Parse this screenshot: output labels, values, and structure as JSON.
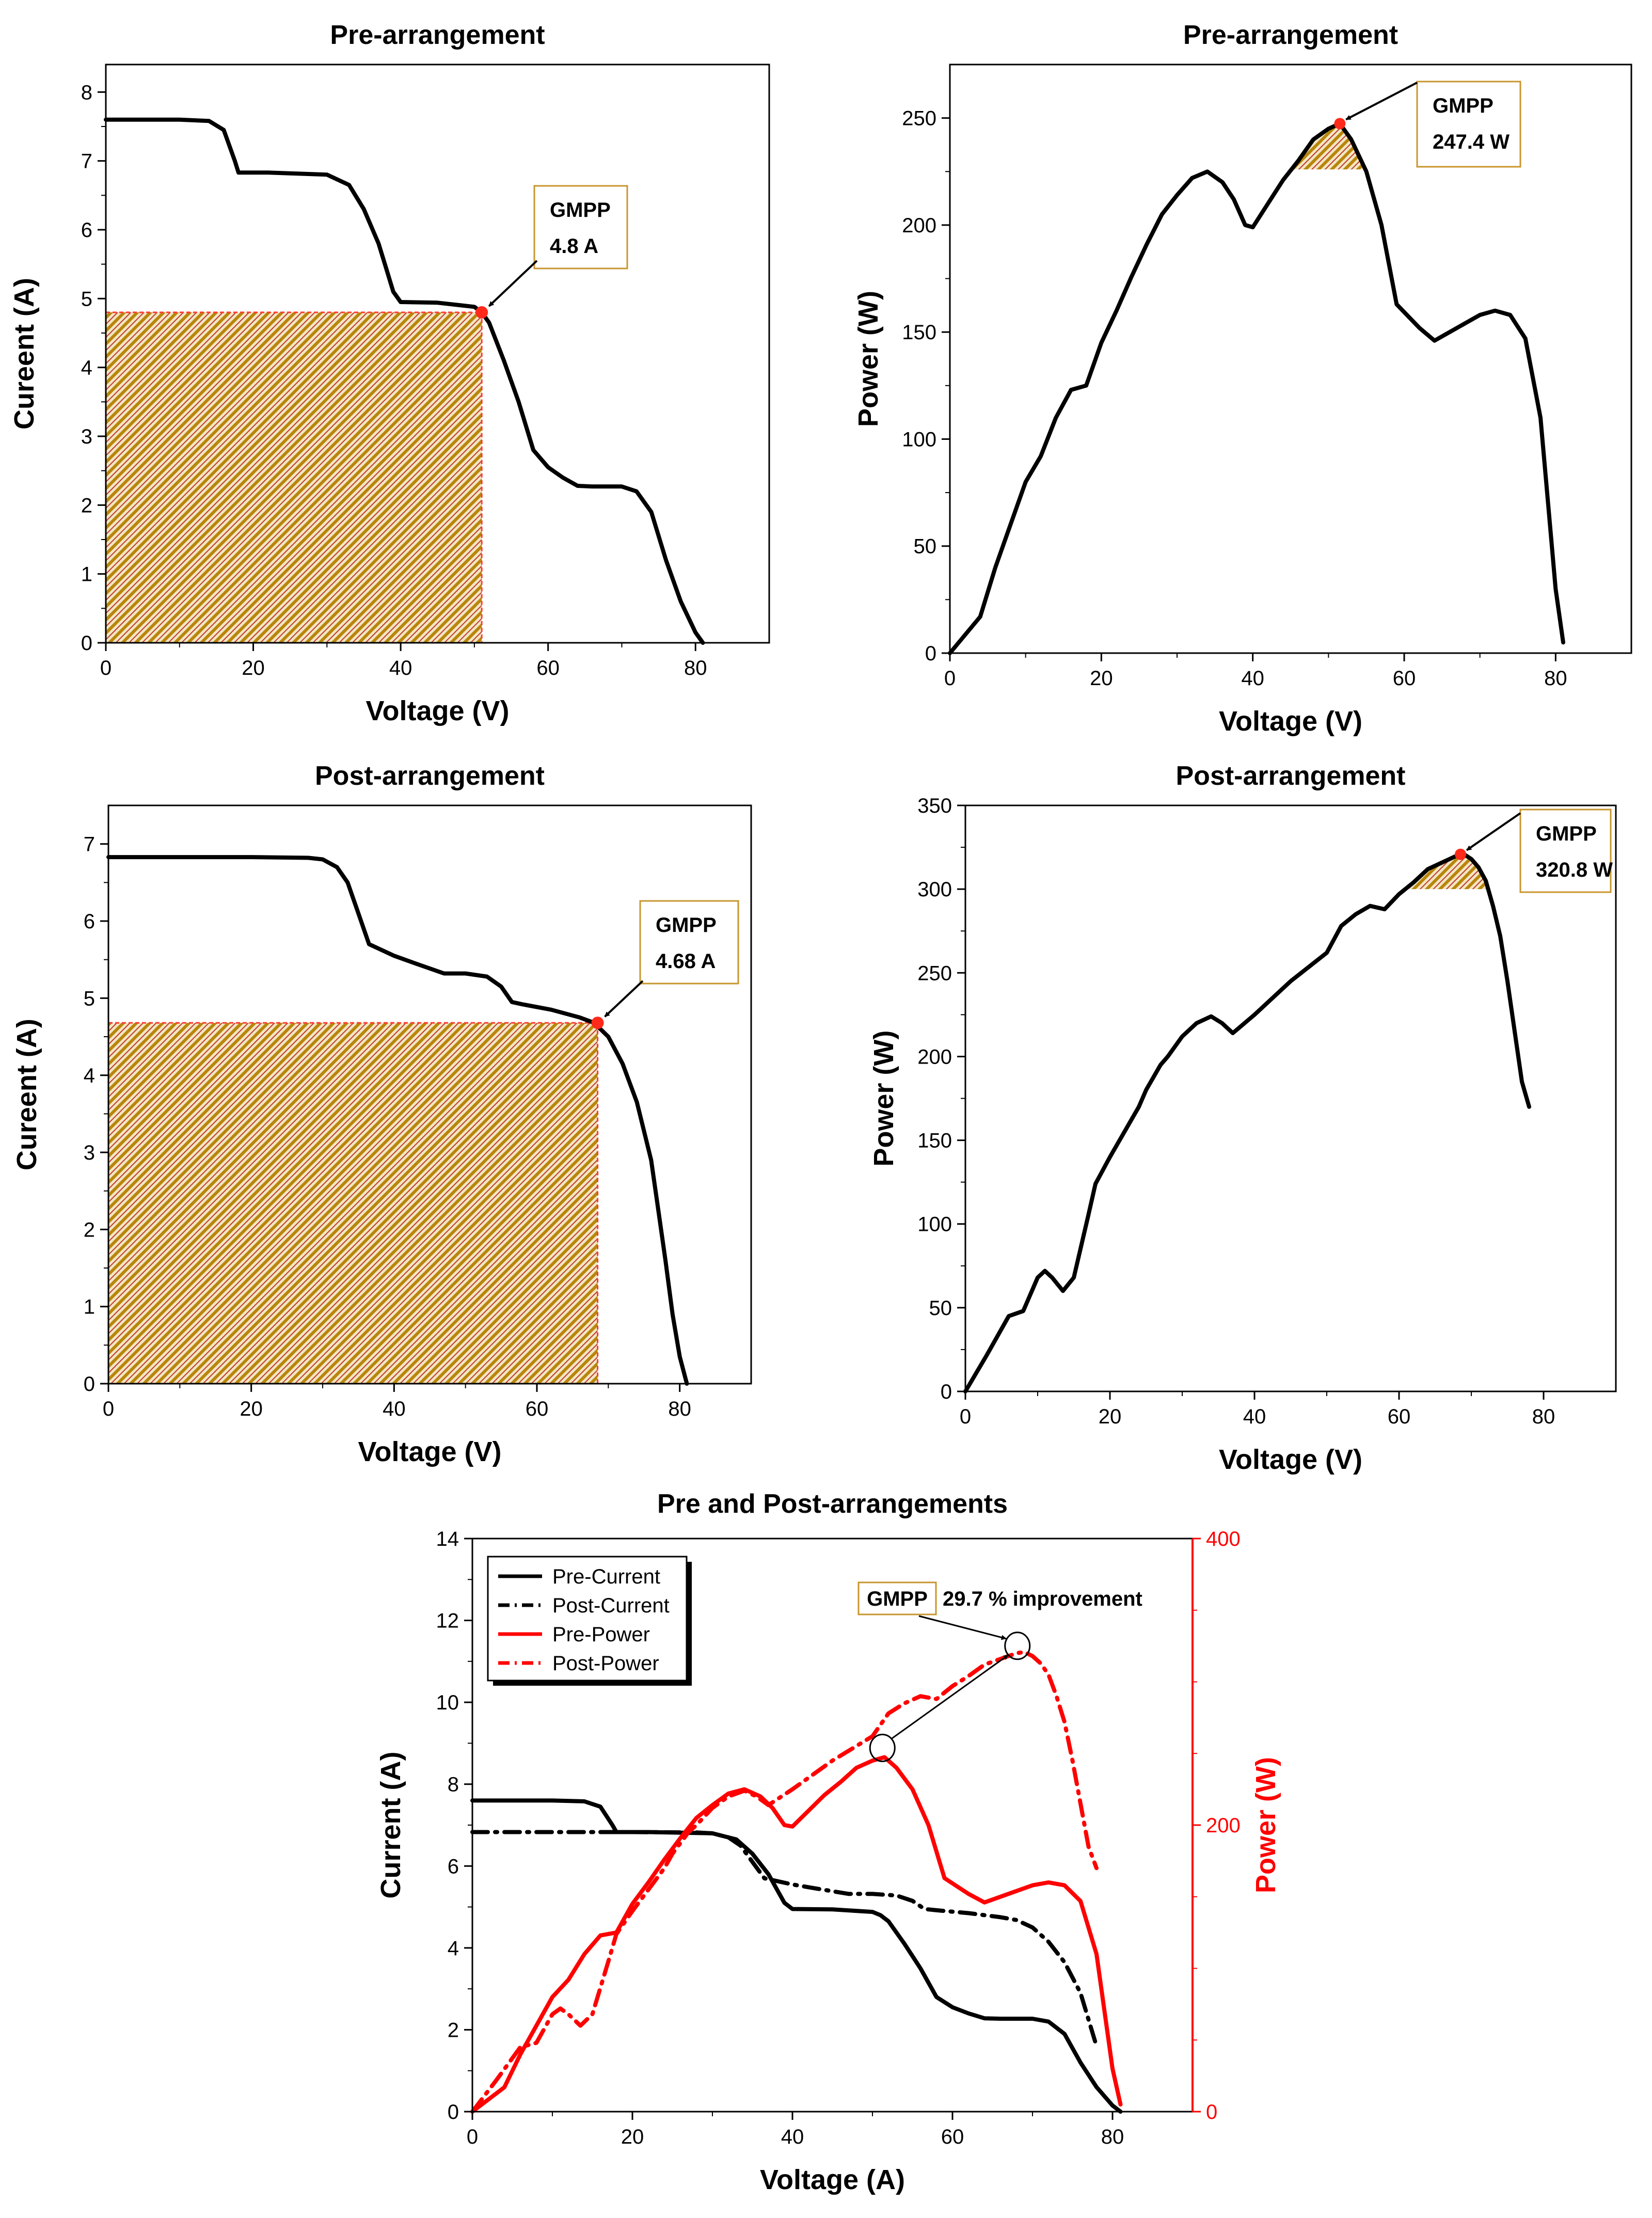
{
  "chart_data": [
    {
      "id": "p1",
      "type": "line",
      "title": "Pre-arrangement",
      "xlabel": "Voltage (V)",
      "ylabel": "Cureent (A)",
      "xlim": [
        0,
        90
      ],
      "ylim": [
        0,
        8.4
      ],
      "xticks": [
        "0",
        "20",
        "40",
        "60",
        "80"
      ],
      "yticks": [
        "0",
        "1",
        "2",
        "3",
        "4",
        "5",
        "6",
        "7",
        "8"
      ],
      "series": [
        {
          "name": "Current",
          "x": [
            0,
            5,
            10,
            14,
            16,
            17.5,
            18,
            22,
            30,
            33,
            35,
            37,
            38,
            39,
            40,
            45,
            50,
            51,
            52,
            54,
            56,
            58,
            60,
            62,
            64,
            66,
            68,
            70,
            72,
            74,
            76,
            78,
            80,
            81
          ],
          "y": [
            7.6,
            7.6,
            7.6,
            7.58,
            7.45,
            7.0,
            6.83,
            6.83,
            6.8,
            6.65,
            6.3,
            5.8,
            5.45,
            5.1,
            4.95,
            4.94,
            4.88,
            4.8,
            4.65,
            4.1,
            3.5,
            2.8,
            2.55,
            2.4,
            2.28,
            2.27,
            2.27,
            2.27,
            2.2,
            1.9,
            1.2,
            0.6,
            0.15,
            0.0
          ]
        }
      ],
      "gmpp": {
        "x": 51,
        "y": 4.8,
        "label": "GMPP",
        "value": "4.8 A"
      }
    },
    {
      "id": "p2",
      "type": "line",
      "title": "Pre-arrangement",
      "xlabel": "Voltage (V)",
      "ylabel": "Power (W)",
      "xlim": [
        0,
        90
      ],
      "ylim": [
        0,
        275
      ],
      "xticks": [
        "0",
        "20",
        "40",
        "60",
        "80"
      ],
      "yticks": [
        "0",
        "50",
        "100",
        "150",
        "200",
        "250"
      ],
      "series": [
        {
          "name": "Power",
          "x": [
            0,
            4,
            6,
            8,
            10,
            12,
            14,
            16,
            18,
            20,
            22,
            24,
            26,
            28,
            30,
            32,
            34,
            36,
            37.5,
            39,
            40,
            42,
            44,
            46,
            48,
            50,
            51.5,
            53,
            55,
            57,
            59,
            62,
            64,
            67,
            70,
            72,
            74,
            76,
            78,
            79,
            80,
            81
          ],
          "y": [
            0,
            17,
            40,
            60,
            80,
            92,
            110,
            123,
            125,
            145,
            160,
            176,
            191,
            205,
            214,
            222,
            225,
            220,
            212,
            200,
            199,
            210,
            221,
            230,
            240,
            245,
            247.4,
            240,
            225,
            200,
            163,
            152,
            146,
            152,
            158,
            160,
            158,
            147,
            110,
            70,
            30,
            5
          ]
        }
      ],
      "gmpp": {
        "x": 51.5,
        "y": 247.4,
        "label": "GMPP",
        "value": "247.4 W"
      }
    },
    {
      "id": "p3",
      "type": "line",
      "title": "Post-arrangement",
      "xlabel": "Voltage (V)",
      "ylabel": "Cureent (A)",
      "xlim": [
        0,
        90
      ],
      "ylim": [
        0,
        7.5
      ],
      "xticks": [
        "0",
        "20",
        "40",
        "60",
        "80"
      ],
      "yticks": [
        "0",
        "1",
        "2",
        "3",
        "4",
        "5",
        "6",
        "7"
      ],
      "series": [
        {
          "name": "Current",
          "x": [
            0,
            10,
            20,
            28,
            30,
            32,
            33.5,
            35,
            36.5,
            40,
            43,
            47,
            50,
            53,
            55,
            56.5,
            58,
            62,
            66,
            68,
            70,
            72,
            74,
            76,
            77,
            78,
            79,
            80,
            81
          ],
          "y": [
            6.83,
            6.83,
            6.83,
            6.82,
            6.8,
            6.7,
            6.5,
            6.1,
            5.7,
            5.55,
            5.45,
            5.32,
            5.32,
            5.28,
            5.15,
            4.95,
            4.92,
            4.85,
            4.75,
            4.68,
            4.5,
            4.15,
            3.65,
            2.9,
            2.25,
            1.6,
            0.9,
            0.35,
            0.0
          ]
        }
      ],
      "gmpp": {
        "x": 68.5,
        "y": 4.68,
        "label": "GMPP",
        "value": "4.68 A"
      }
    },
    {
      "id": "p4",
      "type": "line",
      "title": "Post-arrangement",
      "xlabel": "Voltage (V)",
      "ylabel": "Power (W)",
      "xlim": [
        0,
        90
      ],
      "ylim": [
        0,
        350
      ],
      "xticks": [
        "0",
        "20",
        "40",
        "60",
        "80"
      ],
      "yticks": [
        "0",
        "50",
        "100",
        "150",
        "200",
        "250",
        "300",
        "350"
      ],
      "series": [
        {
          "name": "Power",
          "x": [
            0,
            3,
            6,
            8,
            10,
            11,
            12,
            13.5,
            15,
            17,
            18,
            20,
            22,
            24,
            25,
            27,
            28,
            30,
            32,
            34,
            35.5,
            37,
            40,
            45,
            50,
            52,
            54,
            56,
            58,
            60,
            62,
            64,
            66,
            68,
            69,
            70,
            71,
            72,
            73,
            74,
            75,
            76,
            77,
            78
          ],
          "y": [
            0,
            22,
            45,
            48,
            68,
            72,
            68,
            60,
            68,
            105,
            124,
            140,
            155,
            170,
            180,
            195,
            200,
            212,
            220,
            224,
            220,
            214,
            225,
            245,
            262,
            278,
            285,
            290,
            288,
            297,
            304,
            312,
            316,
            320,
            320.8,
            318,
            313,
            305,
            290,
            272,
            245,
            215,
            185,
            170
          ]
        }
      ],
      "gmpp": {
        "x": 68.5,
        "y": 320.8,
        "label": "GMPP",
        "value": "320.8 W"
      }
    },
    {
      "id": "p5",
      "type": "line",
      "title": "Pre and Post-arrangements",
      "xlabel": "Voltage (A)",
      "ylabel": "Current (A)",
      "y2label": "Power (W)",
      "xlim": [
        0,
        90
      ],
      "ylim": [
        0,
        14
      ],
      "y2lim": [
        0,
        400
      ],
      "xticks": [
        "0",
        "20",
        "40",
        "60",
        "80"
      ],
      "yticks": [
        "0",
        "2",
        "4",
        "6",
        "8",
        "10",
        "12",
        "14"
      ],
      "y2ticks": [
        "0",
        "200",
        "400"
      ],
      "legend_position": "top-left",
      "series": [
        {
          "name": "Pre-Current",
          "axis": "left",
          "color": "#000000",
          "style": "solid",
          "x": [
            0,
            5,
            10,
            14,
            16,
            17.5,
            18,
            22,
            30,
            33,
            35,
            37,
            38,
            39,
            40,
            45,
            50,
            51,
            52,
            54,
            56,
            58,
            60,
            62,
            64,
            66,
            68,
            70,
            72,
            74,
            76,
            78,
            80,
            81
          ],
          "y": [
            7.6,
            7.6,
            7.6,
            7.58,
            7.45,
            7.0,
            6.83,
            6.83,
            6.8,
            6.65,
            6.3,
            5.8,
            5.45,
            5.1,
            4.95,
            4.94,
            4.88,
            4.8,
            4.65,
            4.1,
            3.5,
            2.8,
            2.55,
            2.4,
            2.28,
            2.27,
            2.27,
            2.27,
            2.2,
            1.9,
            1.2,
            0.6,
            0.15,
            0.0
          ]
        },
        {
          "name": "Post-Current",
          "axis": "left",
          "color": "#000000",
          "style": "dashdot",
          "x": [
            0,
            10,
            20,
            28,
            30,
            32,
            33.5,
            35,
            36.5,
            40,
            43,
            47,
            50,
            53,
            55,
            56.5,
            58,
            62,
            66,
            68,
            70,
            72,
            74,
            76,
            77,
            78
          ],
          "y": [
            6.83,
            6.83,
            6.83,
            6.82,
            6.8,
            6.7,
            6.5,
            6.1,
            5.7,
            5.55,
            5.45,
            5.32,
            5.32,
            5.28,
            5.15,
            4.95,
            4.92,
            4.85,
            4.75,
            4.68,
            4.5,
            4.15,
            3.65,
            2.9,
            2.25,
            1.6
          ]
        },
        {
          "name": "Pre-Power",
          "axis": "right",
          "color": "#ff0000",
          "style": "solid",
          "x": [
            0,
            4,
            6,
            8,
            10,
            12,
            14,
            16,
            18,
            20,
            22,
            24,
            26,
            28,
            30,
            32,
            34,
            36,
            37.5,
            39,
            40,
            42,
            44,
            46,
            48,
            50,
            51.5,
            53,
            55,
            57,
            59,
            62,
            64,
            67,
            70,
            72,
            74,
            76,
            78,
            79,
            80,
            81
          ],
          "y": [
            0,
            17,
            40,
            60,
            80,
            92,
            110,
            123,
            125,
            145,
            160,
            176,
            191,
            205,
            214,
            222,
            225,
            220,
            212,
            200,
            199,
            210,
            221,
            230,
            240,
            245,
            247.4,
            240,
            225,
            200,
            163,
            152,
            146,
            152,
            158,
            160,
            158,
            147,
            110,
            70,
            30,
            5
          ]
        },
        {
          "name": "Post-Power",
          "axis": "right",
          "color": "#ff0000",
          "style": "dashdot",
          "x": [
            0,
            3,
            6,
            8,
            10,
            11,
            12,
            13.5,
            15,
            17,
            18,
            20,
            22,
            24,
            25,
            27,
            28,
            30,
            32,
            34,
            35.5,
            37,
            40,
            45,
            50,
            52,
            54,
            56,
            58,
            60,
            62,
            64,
            66,
            68,
            69,
            70,
            71,
            72,
            73,
            74,
            75,
            76,
            77,
            78
          ],
          "y": [
            0,
            22,
            45,
            48,
            68,
            72,
            68,
            60,
            68,
            105,
            124,
            140,
            155,
            170,
            180,
            195,
            200,
            212,
            220,
            224,
            220,
            214,
            225,
            245,
            262,
            278,
            285,
            290,
            288,
            297,
            304,
            312,
            316,
            320,
            320.8,
            318,
            313,
            305,
            290,
            272,
            245,
            215,
            185,
            170
          ]
        }
      ],
      "annotation": {
        "label": "GMPP",
        "text": "29.7 % improvement",
        "from": {
          "x": 51.5,
          "y2": 247.4
        },
        "to": {
          "x": 68.5,
          "y2": 320.8
        }
      }
    }
  ]
}
